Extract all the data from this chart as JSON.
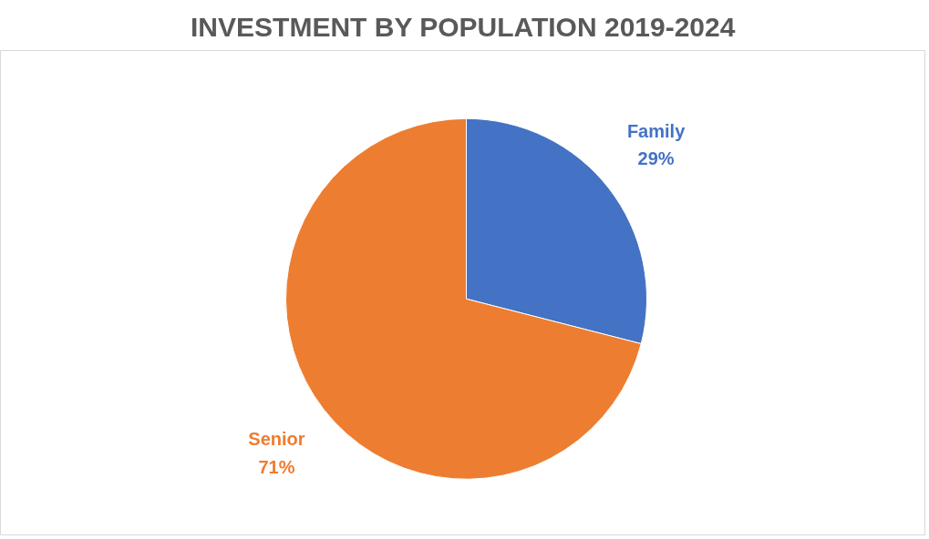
{
  "chart_data": {
    "type": "pie",
    "title": "INVESTMENT BY POPULATION 2019-2024",
    "categories": [
      "Family",
      "Senior"
    ],
    "values": [
      29,
      71
    ],
    "colors": [
      "#4472c4",
      "#ed7d31"
    ],
    "value_labels": [
      "29%",
      "71%"
    ]
  }
}
